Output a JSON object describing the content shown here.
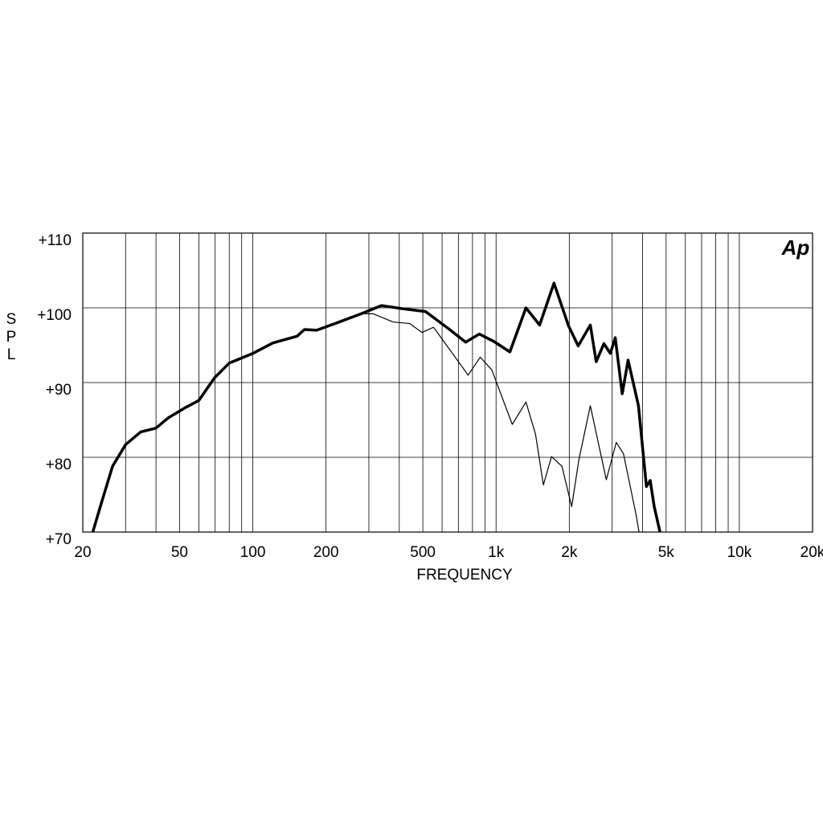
{
  "chart_data": {
    "type": "line",
    "y_label": "SPL",
    "x_label": "FREQUENCY",
    "logo": "Ap",
    "xscale": "log",
    "grid": true,
    "xlim": [
      20,
      20000
    ],
    "ylim": [
      70,
      110
    ],
    "xticks": [
      20,
      50,
      100,
      200,
      500,
      {
        "value": 1000,
        "label": "1k"
      },
      {
        "value": 2000,
        "label": "2k"
      },
      {
        "value": 5000,
        "label": "5k"
      },
      {
        "value": 10000,
        "label": "10k"
      },
      {
        "value": 20000,
        "label": "20k"
      }
    ],
    "xgrid": [
      20,
      30,
      40,
      50,
      60,
      70,
      80,
      90,
      100,
      200,
      300,
      400,
      500,
      600,
      700,
      800,
      900,
      1000,
      2000,
      3000,
      4000,
      5000,
      6000,
      7000,
      8000,
      9000,
      10000,
      20000
    ],
    "yticks": [
      {
        "value": 70,
        "label": "+70"
      },
      {
        "value": 80,
        "label": "+80"
      },
      {
        "value": 90,
        "label": "+90"
      },
      {
        "value": 100,
        "label": "+100"
      },
      {
        "value": 110,
        "label": "+110"
      }
    ],
    "series": [
      {
        "color": "#000000",
        "width": 3.5,
        "x": [
          22,
          23.6,
          26.5,
          30,
          34.6,
          40,
          45,
          52.5,
          60,
          69.5,
          80,
          100,
          121,
          152,
          163,
          183,
          222,
          279,
          338,
          408,
          513,
          644,
          750,
          853,
          980,
          1140,
          1327,
          1510,
          1730,
          1985,
          2175,
          2440,
          2580,
          2775,
          2950,
          3090,
          3300,
          3490,
          3850,
          4150,
          4300,
          4470,
          4720
        ],
        "values": [
          70,
          73.4,
          78.8,
          81.7,
          83.4,
          83.9,
          85.3,
          86.6,
          87.6,
          90.6,
          92.6,
          93.9,
          95.3,
          96.2,
          97.1,
          97,
          98,
          99.2,
          100.3,
          99.9,
          99.5,
          97.1,
          95.4,
          96.5,
          95.5,
          94.1,
          100,
          97.7,
          103.3,
          97.6,
          94.9,
          97.7,
          92.8,
          95.2,
          93.9,
          96,
          88.5,
          93,
          86.9,
          76.1,
          76.9,
          73.4,
          70
        ]
      },
      {
        "color": "#000000",
        "width": 1.2,
        "x": [
          22,
          23.6,
          26.5,
          30,
          34.6,
          40,
          45,
          52.5,
          60,
          69.5,
          80,
          100,
          121,
          152,
          163,
          183,
          222,
          279,
          313,
          378,
          441,
          496,
          553,
          610,
          768,
          861,
          960,
          1166,
          1327,
          1453,
          1565,
          1690,
          1866,
          2045,
          2190,
          2440,
          2630,
          2840,
          3120,
          3340,
          3760,
          3870
        ],
        "values": [
          70,
          73.4,
          78.8,
          81.7,
          83.4,
          83.9,
          85.3,
          86.6,
          87.6,
          90.6,
          92.6,
          93.9,
          95.3,
          96.2,
          97.1,
          97,
          98,
          99.2,
          99.2,
          98.1,
          97.9,
          96.7,
          97.4,
          95.5,
          91,
          93.4,
          91.7,
          84.4,
          87.4,
          83.1,
          76.3,
          80.1,
          78.8,
          73.4,
          79.7,
          86.9,
          82,
          77,
          82,
          80.5,
          72.4,
          70
        ]
      }
    ]
  }
}
